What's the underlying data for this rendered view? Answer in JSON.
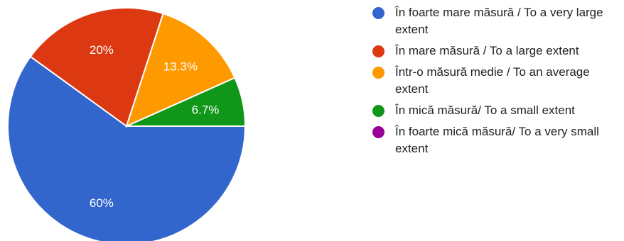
{
  "chart_data": {
    "type": "pie",
    "categories": [
      "În foarte mare măsură / To a very large extent",
      "În mare măsură / To a large extent",
      "Într-o măsură medie / To an average extent",
      "În mică măsură/ To a small extent",
      "În foarte mică măsură/ To a very small extent"
    ],
    "values": [
      60,
      20,
      13.3,
      6.7,
      0
    ],
    "labels": [
      "60%",
      "20%",
      "13.3%",
      "6.7%",
      ""
    ],
    "colors": [
      "#3366cc",
      "#dc3912",
      "#ff9900",
      "#109618",
      "#990099"
    ],
    "legend_position": "right"
  }
}
